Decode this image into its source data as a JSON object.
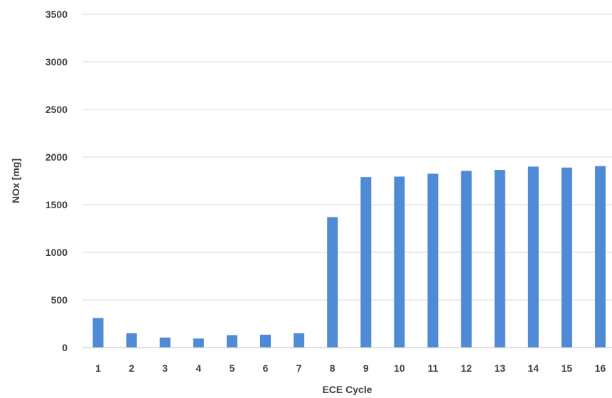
{
  "chart_data": {
    "type": "bar",
    "title": "",
    "xlabel": "ECE Cycle",
    "ylabel": "NOx [mg]",
    "ylim": [
      0,
      3500
    ],
    "yticks": [
      0,
      500,
      1000,
      1500,
      2000,
      2500,
      3000,
      3500
    ],
    "grid": true,
    "legend": "none",
    "bar_color": "#4f8ad6",
    "categories": [
      "1",
      "2",
      "3",
      "4",
      "5",
      "6",
      "7",
      "8",
      "9",
      "10",
      "11",
      "12",
      "13",
      "14",
      "15",
      "16"
    ],
    "values": [
      310,
      150,
      105,
      95,
      130,
      135,
      150,
      1370,
      1790,
      1795,
      1825,
      1855,
      1865,
      1900,
      1890,
      1905
    ]
  }
}
